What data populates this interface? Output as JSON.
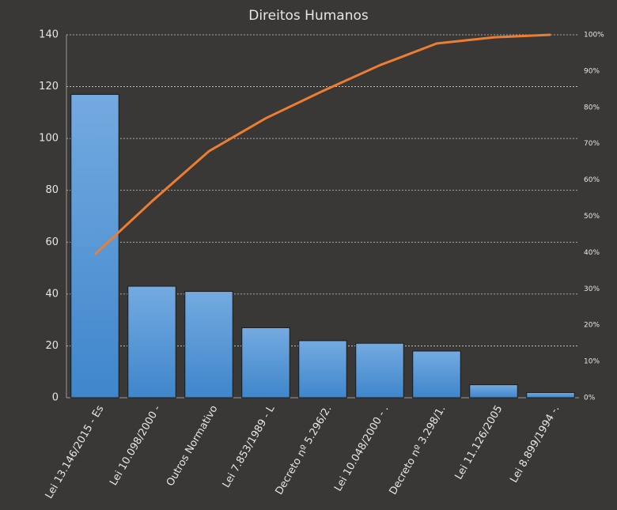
{
  "chart_data": {
    "type": "pareto",
    "title": "Direitos Humanos",
    "categories": [
      "Lei 13.146/2015 - Es",
      "Lei 10.098/2000 -",
      "Outros Normativo",
      "Lei 7.853/1989 - L",
      "Decreto nº 5.296/2.",
      "Lei 10.048/2000 - .",
      "Decreto nº 3.298/1.",
      "Lei 11.126/2005",
      "Lei 8.899/1994 -."
    ],
    "series": [
      {
        "type": "bar",
        "color": "#5b9bd5",
        "values": [
          117,
          43,
          41,
          27,
          22,
          21,
          18,
          5,
          2
        ]
      },
      {
        "type": "line",
        "color": "#ed7d31",
        "axis": "y2",
        "values": [
          39.5,
          54.1,
          67.9,
          77.0,
          84.5,
          91.6,
          97.6,
          99.3,
          100
        ]
      }
    ],
    "ylim": [
      0,
      140
    ],
    "yticks": [
      0,
      20,
      40,
      60,
      80,
      100,
      120,
      140
    ],
    "y2lim": [
      0,
      100
    ],
    "y2ticks": [
      {
        "value": 0,
        "label": "0%"
      },
      {
        "value": 10,
        "label": "10%"
      },
      {
        "value": 20,
        "label": "20%"
      },
      {
        "value": 30,
        "label": "30%"
      },
      {
        "value": 40,
        "label": "40%"
      },
      {
        "value": 50,
        "label": "50%"
      },
      {
        "value": 60,
        "label": "60%"
      },
      {
        "value": 70,
        "label": "70%"
      },
      {
        "value": 80,
        "label": "80%"
      },
      {
        "value": 90,
        "label": "90%"
      },
      {
        "value": 100,
        "label": "100%"
      }
    ],
    "grid": true
  }
}
